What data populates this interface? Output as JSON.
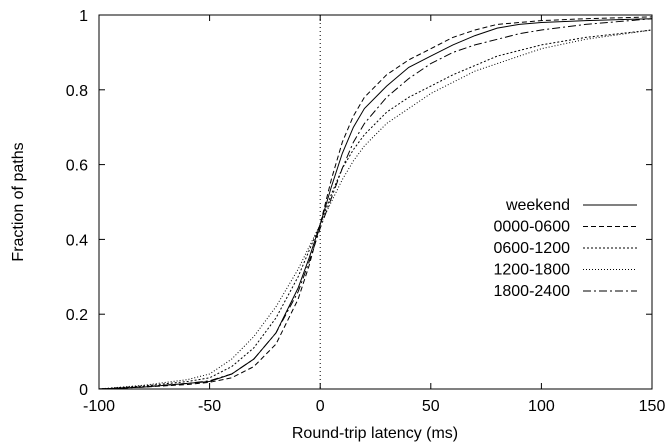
{
  "chart_data": {
    "type": "line",
    "title": "",
    "xlabel": "Round-trip latency (ms)",
    "ylabel": "Fraction of paths",
    "xlim": [
      -100,
      150
    ],
    "ylim": [
      0,
      1
    ],
    "x_ticks": [
      -100,
      -50,
      0,
      50,
      100,
      150
    ],
    "x_tick_labels": [
      "-100",
      "-50",
      "0",
      "50",
      "100",
      "150"
    ],
    "y_ticks": [
      0,
      0.2,
      0.4,
      0.6,
      0.8,
      1
    ],
    "y_tick_labels": [
      "0",
      "0.2",
      "0.4",
      "0.6",
      "0.8",
      "1"
    ],
    "grid": false,
    "legend_position": "right",
    "reference_line": {
      "x": 0,
      "style": "dotted"
    },
    "series": [
      {
        "name": "weekend",
        "dash": "",
        "x": [
          -100,
          -80,
          -60,
          -50,
          -40,
          -30,
          -20,
          -10,
          -5,
          0,
          5,
          10,
          15,
          20,
          30,
          40,
          50,
          60,
          70,
          80,
          90,
          100,
          120,
          150
        ],
        "y": [
          0.0,
          0.005,
          0.015,
          0.02,
          0.04,
          0.08,
          0.15,
          0.27,
          0.35,
          0.44,
          0.54,
          0.63,
          0.7,
          0.75,
          0.81,
          0.86,
          0.89,
          0.92,
          0.945,
          0.965,
          0.975,
          0.98,
          0.985,
          0.99
        ]
      },
      {
        "name": "0000-0600",
        "dash": "5,3",
        "x": [
          -100,
          -80,
          -60,
          -50,
          -40,
          -30,
          -20,
          -10,
          -5,
          0,
          5,
          10,
          15,
          20,
          30,
          40,
          50,
          60,
          70,
          80,
          90,
          100,
          120,
          150
        ],
        "y": [
          0.0,
          0.005,
          0.012,
          0.018,
          0.03,
          0.06,
          0.12,
          0.24,
          0.33,
          0.44,
          0.56,
          0.66,
          0.73,
          0.78,
          0.84,
          0.88,
          0.91,
          0.94,
          0.96,
          0.975,
          0.98,
          0.985,
          0.99,
          0.995
        ]
      },
      {
        "name": "0600-1200",
        "dash": "2,2",
        "x": [
          -100,
          -80,
          -60,
          -50,
          -40,
          -30,
          -20,
          -10,
          -5,
          0,
          5,
          10,
          15,
          20,
          30,
          40,
          50,
          60,
          70,
          80,
          90,
          100,
          120,
          150
        ],
        "y": [
          0.0,
          0.008,
          0.02,
          0.03,
          0.06,
          0.11,
          0.19,
          0.3,
          0.37,
          0.44,
          0.52,
          0.59,
          0.64,
          0.68,
          0.74,
          0.78,
          0.81,
          0.84,
          0.865,
          0.89,
          0.905,
          0.92,
          0.94,
          0.96
        ]
      },
      {
        "name": "1200-1800",
        "dash": "1,2",
        "x": [
          -100,
          -80,
          -60,
          -50,
          -40,
          -30,
          -20,
          -10,
          -5,
          0,
          5,
          10,
          15,
          20,
          30,
          40,
          50,
          60,
          70,
          80,
          90,
          100,
          120,
          150
        ],
        "y": [
          0.0,
          0.01,
          0.025,
          0.04,
          0.08,
          0.14,
          0.22,
          0.32,
          0.38,
          0.44,
          0.5,
          0.56,
          0.61,
          0.65,
          0.71,
          0.75,
          0.79,
          0.82,
          0.85,
          0.87,
          0.89,
          0.91,
          0.935,
          0.96
        ]
      },
      {
        "name": "1800-2400",
        "dash": "8,3,2,3",
        "x": [
          -100,
          -80,
          -60,
          -50,
          -40,
          -30,
          -20,
          -10,
          -5,
          0,
          5,
          10,
          15,
          20,
          30,
          40,
          50,
          60,
          70,
          80,
          90,
          100,
          120,
          150
        ],
        "y": [
          0.0,
          0.006,
          0.015,
          0.022,
          0.04,
          0.08,
          0.15,
          0.26,
          0.34,
          0.43,
          0.51,
          0.59,
          0.66,
          0.71,
          0.78,
          0.83,
          0.87,
          0.9,
          0.92,
          0.935,
          0.95,
          0.96,
          0.975,
          0.99
        ]
      }
    ]
  }
}
